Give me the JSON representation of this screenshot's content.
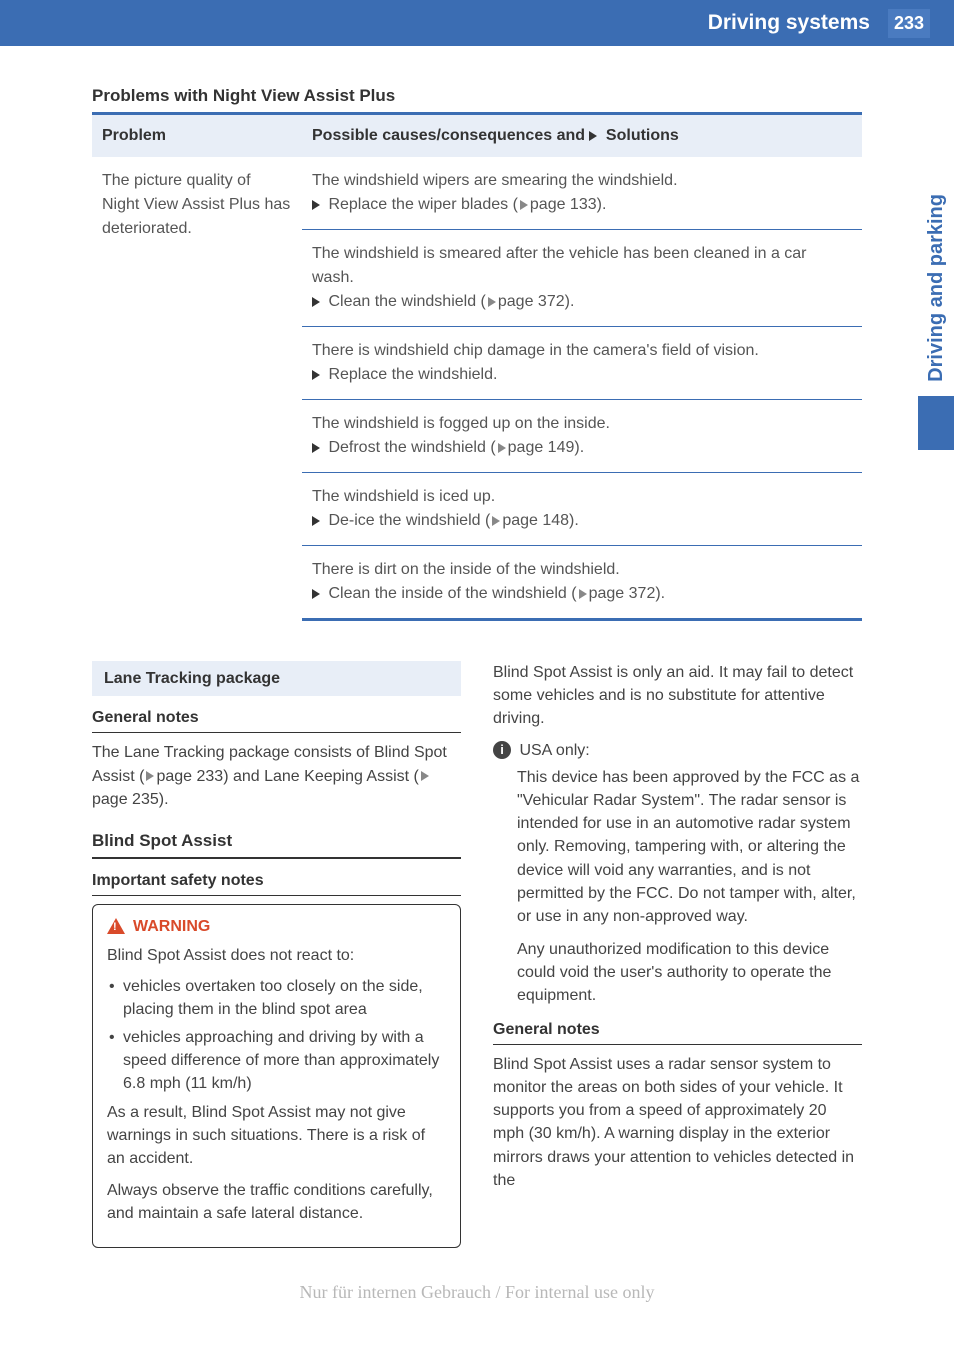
{
  "header": {
    "title": "Driving systems",
    "page_number": "233",
    "bg_color": "#3b6db3",
    "text_color": "#ffffff"
  },
  "side_tab": {
    "label": "Driving and parking",
    "text_color": "#3b6db3",
    "block_color": "#3b6db3"
  },
  "section_heading": "Problems with Night View Assist Plus",
  "table": {
    "header_problem": "Problem",
    "header_solution_prefix": "Possible causes/consequences and",
    "header_solution_suffix": "Solutions",
    "problem_text": "The picture quality of Night View Assist Plus has deteriorated.",
    "rows": [
      {
        "cause": "The windshield wipers are smearing the windshield.",
        "action_prefix": "Replace the wiper blades (",
        "action_page": "page 133).",
        "action_suffix": ""
      },
      {
        "cause": "The windshield is smeared after the vehicle has been cleaned in a car wash.",
        "action_prefix": "Clean the windshield (",
        "action_page": "page 372).",
        "action_suffix": ""
      },
      {
        "cause": "There is windshield chip damage in the camera's field of vision.",
        "action_prefix": "Replace the windshield.",
        "action_page": "",
        "action_suffix": ""
      },
      {
        "cause": "The windshield is fogged up on the inside.",
        "action_prefix": "Defrost the windshield (",
        "action_page": "page 149).",
        "action_suffix": ""
      },
      {
        "cause": "The windshield is iced up.",
        "action_prefix": "De-ice the windshield (",
        "action_page": "page 148).",
        "action_suffix": ""
      },
      {
        "cause": "There is dirt on the inside of the windshield.",
        "action_prefix": "Clean the inside of the windshield (",
        "action_page": "page 372).",
        "action_suffix": ""
      }
    ]
  },
  "left_col": {
    "box_title": "Lane Tracking package",
    "general_notes_head": "General notes",
    "general_notes_body_1": "The Lane Tracking package consists of Blind Spot Assist (",
    "general_notes_page1": "page 233) and Lane Keeping Assist (",
    "general_notes_page2": "page 235).",
    "blind_spot_head": "Blind Spot Assist",
    "important_safety_head": "Important safety notes",
    "warning_label": "WARNING",
    "warning_intro": "Blind Spot Assist does not react to:",
    "warning_bullets": [
      "vehicles overtaken too closely on the side, placing them in the blind spot area",
      "vehicles approaching and driving by with a speed difference of more than approximately 6.8 mph (11 km/h)"
    ],
    "warning_result": "As a result, Blind Spot Assist may not give warnings in such situations. There is a risk of an accident.",
    "warning_observe": "Always observe the traffic conditions carefully, and maintain a safe lateral distance."
  },
  "right_col": {
    "intro": "Blind Spot Assist is only an aid. It may fail to detect some vehicles and is no substitute for attentive driving.",
    "info_head": "USA only:",
    "info_p1": "This device has been approved by the FCC as a \"Vehicular Radar System\". The radar sensor is intended for use in an automotive radar system only. Removing, tampering with, or altering the device will void any warranties, and is not permitted by the FCC. Do not tamper with, alter, or use in any non-approved way.",
    "info_p2": "Any unauthorized modification to this device could void the user's authority to operate the equipment.",
    "general_notes_head": "General notes",
    "general_notes_body": "Blind Spot Assist uses a radar sensor system to monitor the areas on both sides of your vehicle. It supports you from a speed of approximately 20 mph (30 km/h). A warning display in the exterior mirrors draws your attention to vehicles detected in the"
  },
  "footer": "Nur für internen Gebrauch / For internal use only"
}
